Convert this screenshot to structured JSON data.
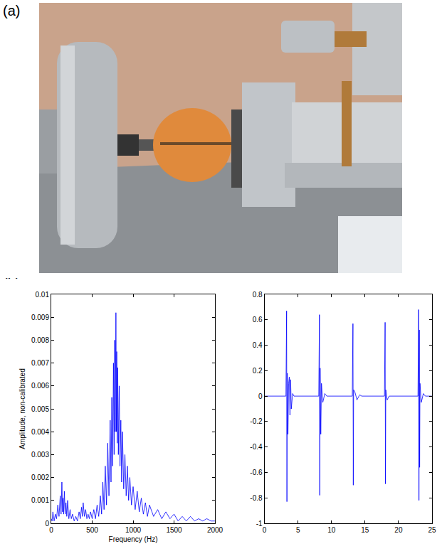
{
  "panel_labels": [
    "(a)",
    "(b)"
  ],
  "chart_data": [
    {
      "type": "line",
      "color": "#0000ff",
      "grid": false,
      "x_label": "Frequency (Hz)",
      "y_label": "Amplitude, non-calibrated",
      "x": [
        0,
        10,
        20,
        35,
        50,
        65,
        80,
        95,
        110,
        120,
        130,
        138,
        145,
        152,
        160,
        170,
        180,
        190,
        200,
        215,
        230,
        245,
        260,
        280,
        300,
        320,
        340,
        355,
        370,
        380,
        390,
        405,
        420,
        435,
        450,
        465,
        480,
        500,
        520,
        540,
        560,
        580,
        600,
        615,
        630,
        645,
        660,
        675,
        690,
        705,
        720,
        730,
        740,
        750,
        760,
        768,
        775,
        782,
        790,
        796,
        800,
        806,
        812,
        820,
        830,
        840,
        850,
        860,
        870,
        885,
        900,
        915,
        930,
        945,
        960,
        980,
        1000,
        1025,
        1050,
        1075,
        1100,
        1125,
        1150,
        1175,
        1200,
        1250,
        1300,
        1350,
        1400,
        1450,
        1500,
        1550,
        1600,
        1650,
        1700,
        1750,
        1800,
        1850,
        1900,
        1950,
        2000
      ],
      "values": [
        0.0002,
        0.0001,
        0.0005,
        0.0001,
        0.0004,
        0.0002,
        0.0008,
        0.0003,
        0.0012,
        0.0004,
        0.0018,
        0.0005,
        0.0011,
        0.0004,
        0.0014,
        0.0004,
        0.0009,
        0.0003,
        0.001,
        0.0002,
        0.0006,
        0.0002,
        0.0004,
        0.0001,
        0.0003,
        0.0001,
        0.0005,
        0.0002,
        0.0007,
        0.0003,
        0.0009,
        0.0003,
        0.0006,
        0.0002,
        0.0004,
        0.0002,
        0.0005,
        0.0002,
        0.0006,
        0.0002,
        0.0008,
        0.0003,
        0.0012,
        0.0004,
        0.0018,
        0.0006,
        0.0025,
        0.0008,
        0.0035,
        0.0012,
        0.0045,
        0.0018,
        0.0055,
        0.0025,
        0.007,
        0.003,
        0.008,
        0.004,
        0.0092,
        0.004,
        0.0075,
        0.0035,
        0.0068,
        0.003,
        0.006,
        0.0025,
        0.0045,
        0.0018,
        0.004,
        0.0015,
        0.003,
        0.0012,
        0.0025,
        0.001,
        0.002,
        0.0008,
        0.0016,
        0.0006,
        0.0014,
        0.0005,
        0.0011,
        0.0004,
        0.0009,
        0.0003,
        0.0008,
        0.0003,
        0.0006,
        0.0002,
        0.0005,
        0.0002,
        0.0004,
        0.0001,
        0.0003,
        0.0001,
        0.0003,
        0.0001,
        0.0002,
        0.0001,
        0.0002,
        0.0001,
        0.0001
      ],
      "xlim": [
        0,
        2000
      ],
      "xticks": [
        0,
        500,
        1000,
        1500,
        2000
      ],
      "ylim": [
        0,
        0.01
      ],
      "yticks": [
        0,
        0.001,
        0.002,
        0.003,
        0.004,
        0.005,
        0.006,
        0.007,
        0.008,
        0.009,
        0.01
      ]
    },
    {
      "type": "line",
      "color": "#0000ff",
      "grid": false,
      "x": [
        0,
        3.2,
        3.3,
        3.35,
        3.4,
        3.5,
        3.6,
        3.7,
        3.8,
        3.9,
        4.0,
        4.2,
        4.4,
        8.1,
        8.2,
        8.25,
        8.3,
        8.4,
        8.5,
        8.7,
        9.0,
        9.3,
        13.1,
        13.2,
        13.25,
        13.3,
        13.5,
        13.8,
        14.2,
        14.5,
        17.9,
        18.0,
        18.05,
        18.1,
        18.3,
        18.6,
        22.9,
        23.0,
        23.05,
        23.1,
        23.15,
        23.2,
        23.4,
        23.7,
        24.0,
        25
      ],
      "values": [
        0,
        0,
        0.67,
        -0.83,
        0.18,
        -0.3,
        0.1,
        0.15,
        -0.15,
        0.13,
        -0.1,
        0.02,
        0,
        0,
        0.64,
        -0.78,
        0.22,
        -0.3,
        0.1,
        -0.05,
        0.02,
        0,
        0,
        0.57,
        -0.7,
        0.05,
        0.03,
        -0.03,
        0.01,
        0,
        0,
        0.58,
        -0.69,
        0.05,
        -0.03,
        0,
        0,
        0.68,
        -0.82,
        0.52,
        -0.56,
        0.1,
        -0.05,
        0.02,
        0,
        0
      ],
      "xlim": [
        0,
        25
      ],
      "xticks": [
        0,
        5,
        10,
        15,
        20,
        25
      ],
      "ylim": [
        -1,
        0.8
      ],
      "yticks": [
        -1,
        -0.8,
        -0.6,
        -0.4,
        -0.2,
        0,
        0.2,
        0.4,
        0.6,
        0.8
      ]
    }
  ]
}
